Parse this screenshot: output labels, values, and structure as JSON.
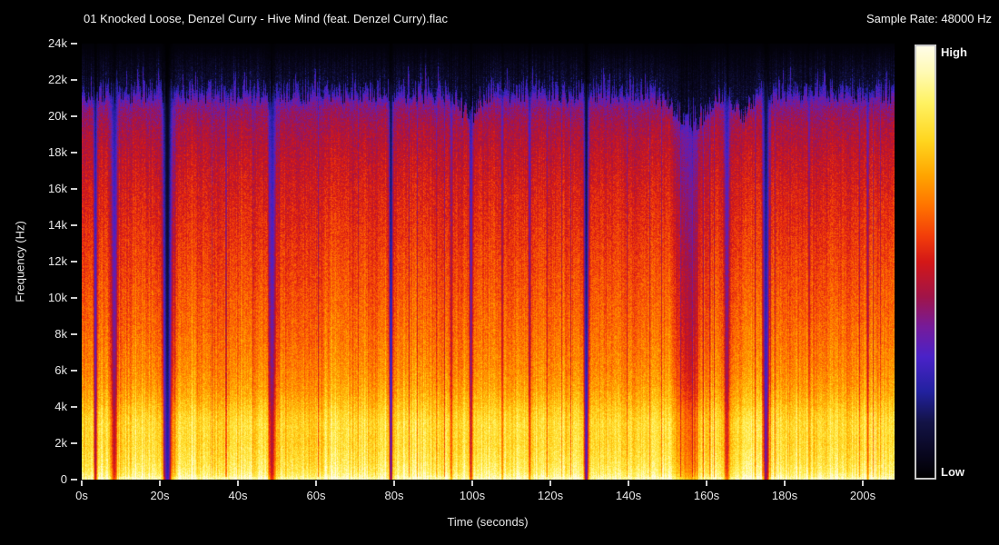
{
  "header": {
    "title": "01 Knocked Loose, Denzel Curry - Hive Mind (feat. Denzel Curry).flac",
    "sample_rate_label": "Sample Rate: 48000 Hz"
  },
  "axes": {
    "y_label": "Frequency (Hz)",
    "x_label": "Time (seconds)",
    "y_ticks": [
      "24k",
      "22k",
      "20k",
      "18k",
      "16k",
      "14k",
      "12k",
      "10k",
      "8k",
      "6k",
      "4k",
      "2k",
      "0"
    ],
    "x_ticks": [
      "0s",
      "20s",
      "40s",
      "60s",
      "80s",
      "100s",
      "120s",
      "140s",
      "160s",
      "180s",
      "200s"
    ]
  },
  "colorbar": {
    "high_label": "High",
    "low_label": "Low",
    "border_color": "#c8c8c8"
  },
  "chart_data": {
    "type": "heatmap",
    "title": "01 Knocked Loose, Denzel Curry - Hive Mind (feat. Denzel Curry).flac",
    "xlabel": "Time (seconds)",
    "ylabel": "Frequency (Hz)",
    "sample_rate_hz": 48000,
    "x_range_s": [
      0,
      208
    ],
    "y_range_hz": [
      0,
      24000
    ],
    "x_tick_values_s": [
      0,
      20,
      40,
      60,
      80,
      100,
      120,
      140,
      160,
      180,
      200
    ],
    "y_tick_values_hz": [
      24000,
      22000,
      20000,
      18000,
      16000,
      14000,
      12000,
      10000,
      8000,
      6000,
      4000,
      2000,
      0
    ],
    "legend": {
      "position": "right",
      "high_label": "High",
      "low_label": "Low"
    },
    "grid": false,
    "colormap_stops": [
      [
        0.0,
        "#000000"
      ],
      [
        0.05,
        "#08061c"
      ],
      [
        0.13,
        "#131347"
      ],
      [
        0.2,
        "#22219f"
      ],
      [
        0.28,
        "#4a22c8"
      ],
      [
        0.35,
        "#761b9a"
      ],
      [
        0.42,
        "#a11448"
      ],
      [
        0.5,
        "#d31717"
      ],
      [
        0.56,
        "#f23d0a"
      ],
      [
        0.63,
        "#ff7300"
      ],
      [
        0.7,
        "#ffa400"
      ],
      [
        0.78,
        "#ffd51e"
      ],
      [
        0.87,
        "#fff263"
      ],
      [
        0.94,
        "#fffab4"
      ],
      [
        1.0,
        "#fffce8"
      ]
    ],
    "spectral_profile_level_by_hz": [
      [
        0,
        0.97
      ],
      [
        150,
        0.93
      ],
      [
        400,
        0.88
      ],
      [
        1000,
        0.84
      ],
      [
        2000,
        0.8
      ],
      [
        3000,
        0.78
      ],
      [
        4000,
        0.74
      ],
      [
        5000,
        0.7
      ],
      [
        6000,
        0.67
      ],
      [
        8000,
        0.63
      ],
      [
        10000,
        0.6
      ],
      [
        12000,
        0.57
      ],
      [
        14000,
        0.54
      ],
      [
        16000,
        0.51
      ],
      [
        18000,
        0.47
      ],
      [
        19500,
        0.43
      ],
      [
        20500,
        0.38
      ],
      [
        21000,
        0.33
      ],
      [
        21400,
        0.28
      ]
    ],
    "hf_cutoff_hz": 21400,
    "hf_cutoff_jitter_hz": 700,
    "hf_dips": [
      {
        "t_s": 99,
        "sigma_s": 3.0,
        "drop_hz": 1300
      },
      {
        "t_s": 156,
        "sigma_s": 5.0,
        "drop_hz": 1700
      },
      {
        "t_s": 169,
        "sigma_s": 2.5,
        "drop_hz": 1200
      }
    ],
    "silence_gaps": [
      {
        "t_s": 3.4,
        "sigma_s": 0.45,
        "depth": 0.6
      },
      {
        "t_s": 8.3,
        "sigma_s": 0.8,
        "depth": 0.55
      },
      {
        "t_s": 21.8,
        "sigma_s": 1.1,
        "depth": 0.9
      },
      {
        "t_s": 48.6,
        "sigma_s": 0.9,
        "depth": 0.5
      },
      {
        "t_s": 79.0,
        "sigma_s": 0.5,
        "depth": 0.75
      },
      {
        "t_s": 94.5,
        "sigma_s": 0.3,
        "depth": 0.3
      },
      {
        "t_s": 99.5,
        "sigma_s": 0.4,
        "depth": 0.5
      },
      {
        "t_s": 107.5,
        "sigma_s": 0.3,
        "depth": 0.35
      },
      {
        "t_s": 114.5,
        "sigma_s": 0.35,
        "depth": 0.4
      },
      {
        "t_s": 129.0,
        "sigma_s": 0.6,
        "depth": 0.8
      },
      {
        "t_s": 155.5,
        "sigma_s": 3.2,
        "depth": 0.28
      },
      {
        "t_s": 165.0,
        "sigma_s": 0.7,
        "depth": 0.45
      },
      {
        "t_s": 175.0,
        "sigma_s": 0.8,
        "depth": 0.7
      },
      {
        "t_s": 186.0,
        "sigma_s": 0.3,
        "depth": 0.3
      },
      {
        "t_s": 201.0,
        "sigma_s": 0.3,
        "depth": 0.35
      }
    ],
    "low_band_bright_bump": {
      "center_hz": 3200,
      "sigma_hz": 1100,
      "amount": 0.035
    },
    "noise_seed": 1337
  }
}
